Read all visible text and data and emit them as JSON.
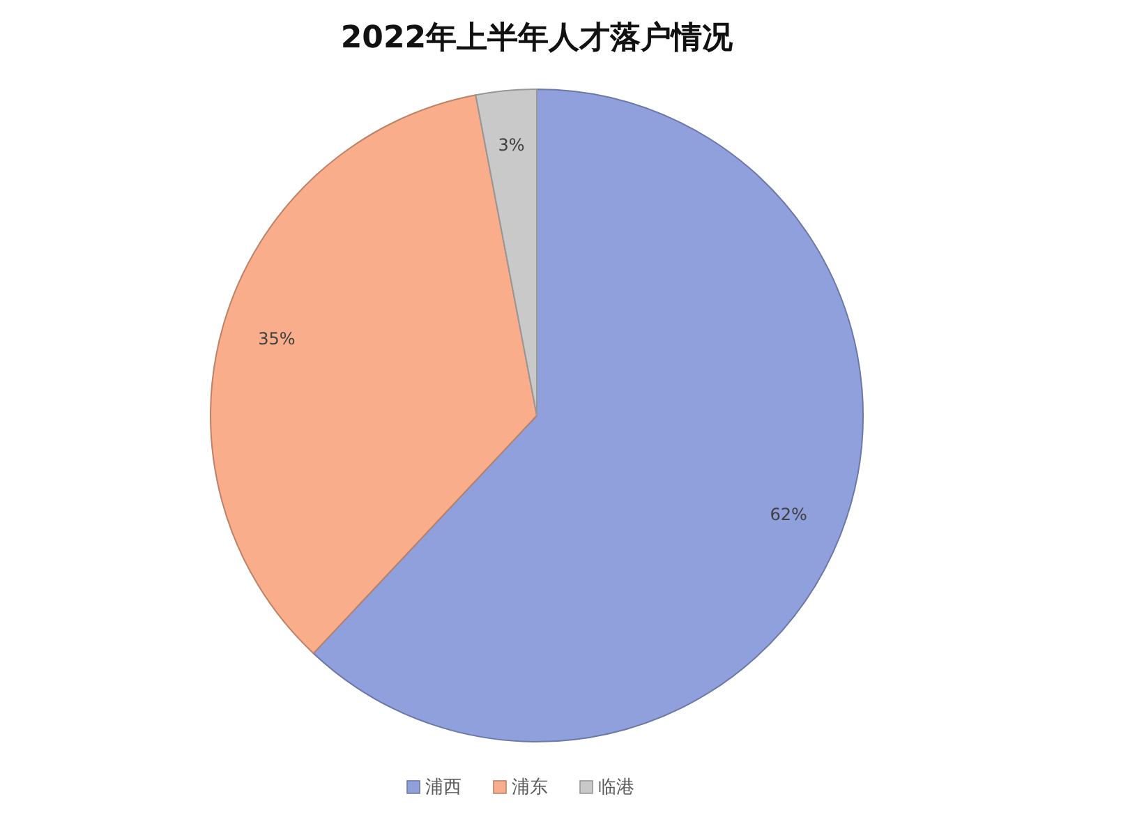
{
  "chart_data": {
    "type": "pie",
    "title": "2022年上半年人才落户情况",
    "categories": [
      "浦西",
      "浦东",
      "临港"
    ],
    "values": [
      62,
      35,
      3
    ],
    "value_labels": [
      "62%",
      "35%",
      "3%"
    ],
    "colors": [
      "#8fa0dc",
      "#f9ad8a",
      "#c9c9c9"
    ],
    "legend": "bottom"
  }
}
